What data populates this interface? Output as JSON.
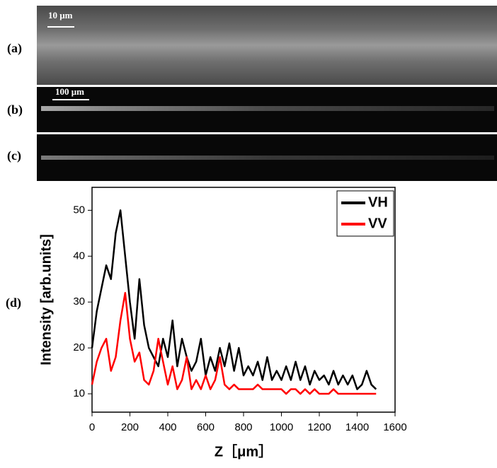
{
  "panels": {
    "labels": [
      "(a)",
      "(b)",
      "(c)",
      "(d)"
    ],
    "scale_bars": [
      "10 μm",
      "100 μm"
    ]
  },
  "chart_data": {
    "type": "line",
    "xlabel": "Z［μm］",
    "ylabel": "Intensity [arb.units]",
    "x": [
      0,
      25,
      50,
      75,
      100,
      125,
      150,
      175,
      200,
      225,
      250,
      275,
      300,
      325,
      350,
      375,
      400,
      425,
      450,
      475,
      500,
      525,
      550,
      575,
      600,
      625,
      650,
      675,
      700,
      725,
      750,
      775,
      800,
      825,
      850,
      875,
      900,
      925,
      950,
      975,
      1000,
      1025,
      1050,
      1075,
      1100,
      1125,
      1150,
      1175,
      1200,
      1225,
      1250,
      1275,
      1300,
      1325,
      1350,
      1375,
      1400,
      1425,
      1450,
      1475,
      1500
    ],
    "series": [
      {
        "name": "VH",
        "color": "#000000",
        "values": [
          20,
          28,
          33,
          38,
          35,
          45,
          50,
          40,
          30,
          22,
          35,
          25,
          20,
          18,
          16,
          22,
          18,
          26,
          16,
          22,
          18,
          15,
          17,
          22,
          14,
          18,
          15,
          20,
          16,
          21,
          15,
          20,
          14,
          16,
          14,
          17,
          13,
          18,
          13,
          15,
          13,
          16,
          13,
          17,
          13,
          16,
          12,
          15,
          13,
          14,
          12,
          15,
          12,
          14,
          12,
          14,
          11,
          12,
          15,
          12,
          11
        ]
      },
      {
        "name": "VV",
        "color": "#ff0000",
        "values": [
          12,
          17,
          20,
          22,
          15,
          18,
          26,
          32,
          22,
          17,
          19,
          13,
          12,
          15,
          22,
          17,
          12,
          16,
          11,
          13,
          18,
          11,
          13,
          11,
          14,
          11,
          13,
          18,
          12,
          11,
          12,
          11,
          11,
          11,
          11,
          12,
          11,
          11,
          11,
          11,
          11,
          10,
          11,
          11,
          10,
          11,
          10,
          11,
          10,
          10,
          10,
          11,
          10,
          10,
          10,
          10,
          10,
          10,
          10,
          10,
          10
        ]
      }
    ],
    "xlim": [
      0,
      1600
    ],
    "xticks": [
      0,
      200,
      400,
      600,
      800,
      1000,
      1200,
      1400,
      1600
    ],
    "ylim": [
      6,
      55
    ],
    "yticks": [
      10,
      20,
      30,
      40,
      50
    ],
    "legend": "upper right"
  }
}
